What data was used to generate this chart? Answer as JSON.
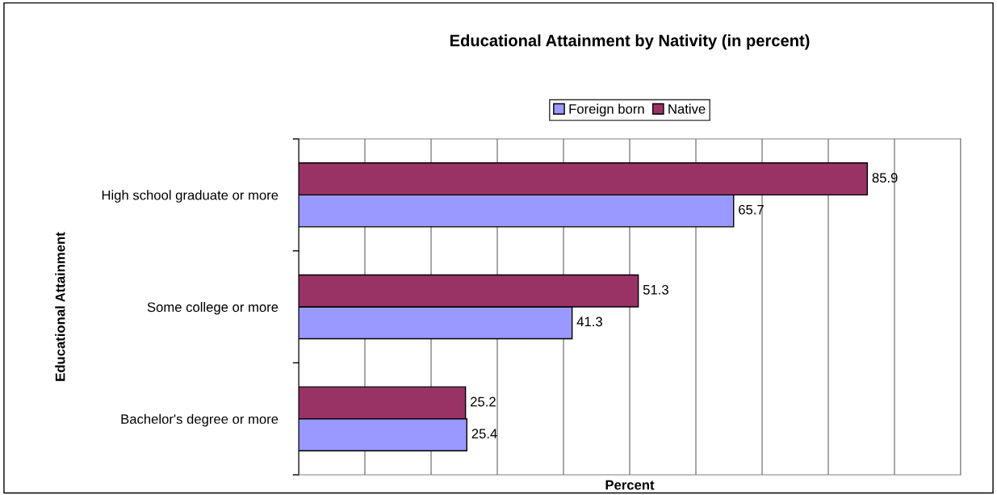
{
  "chart_data": {
    "type": "bar",
    "orientation": "horizontal",
    "title": "Educational Attainment by Nativity (in percent)",
    "xlabel": "Percent",
    "ylabel": "Educational Attainment",
    "categories": [
      "High school graduate or more",
      "Some college or more",
      "Bachelor's degree or more"
    ],
    "series": [
      {
        "name": "Foreign born",
        "color": "#9999ff",
        "values": [
          65.7,
          41.3,
          25.4
        ]
      },
      {
        "name": "Native",
        "color": "#993366",
        "values": [
          85.9,
          51.3,
          25.2
        ]
      }
    ],
    "xlim": [
      0,
      100
    ],
    "xticks": [
      {
        "value": 0,
        "label": null
      },
      {
        "value": 10,
        "label": null
      },
      {
        "value": 20,
        "label": null
      },
      {
        "value": 30,
        "label": null
      },
      {
        "value": 40,
        "label": null
      },
      {
        "value": 50,
        "label": null
      },
      {
        "value": 60,
        "label": null
      },
      {
        "value": 70,
        "label": null
      },
      {
        "value": 80,
        "label": null
      },
      {
        "value": 90,
        "label": null
      },
      {
        "value": 100,
        "label": null
      }
    ],
    "grid": "x",
    "legend": "top",
    "tick_labels": "y",
    "data_labels": true
  }
}
